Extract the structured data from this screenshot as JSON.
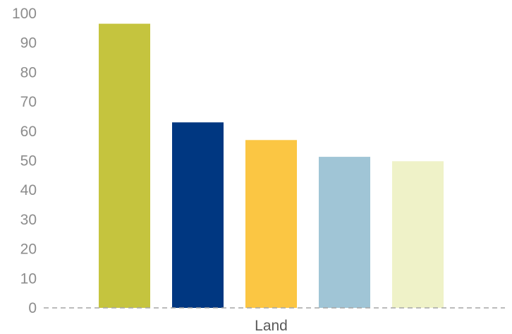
{
  "chart_data": {
    "type": "bar",
    "categories": [
      "Land"
    ],
    "series": [
      {
        "values": [
          96.5
        ],
        "color": "#c5c43e"
      },
      {
        "values": [
          63
        ],
        "color": "#003781"
      },
      {
        "values": [
          57
        ],
        "color": "#fbc643"
      },
      {
        "values": [
          51.3
        ],
        "color": "#a0c5d6"
      },
      {
        "values": [
          49.8
        ],
        "color": "#eff2c8"
      }
    ],
    "ylim": [
      0,
      100
    ],
    "yticks": [
      "0",
      "10",
      "20",
      "30",
      "40",
      "50",
      "60",
      "70",
      "80",
      "90",
      "100"
    ],
    "grid": false,
    "legend": "none"
  }
}
